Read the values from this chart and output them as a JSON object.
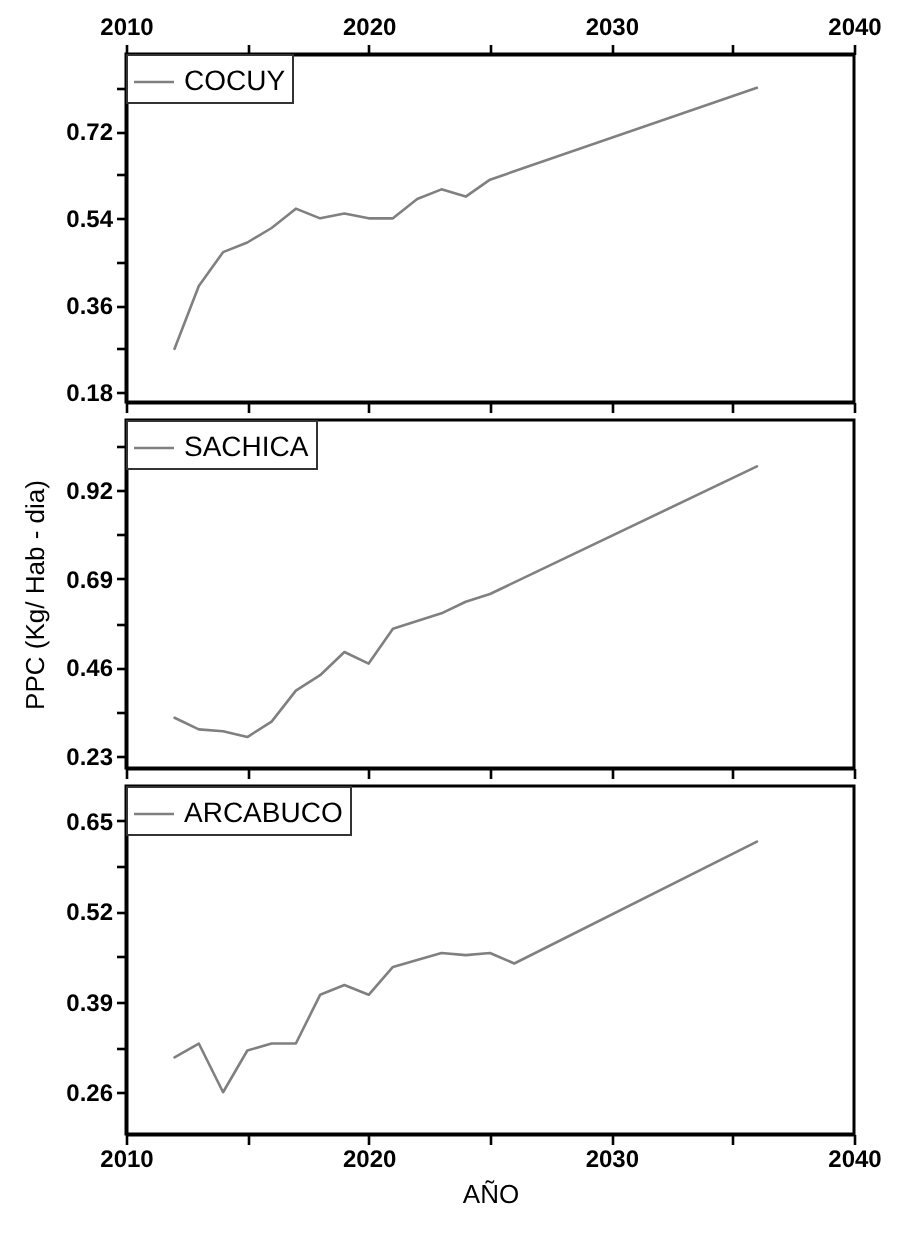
{
  "chart_data": [
    {
      "type": "line",
      "x": [
        2012,
        2013,
        2014,
        2015,
        2016,
        2017,
        2018,
        2019,
        2020,
        2021,
        2022,
        2023,
        2024,
        2025,
        2036
      ],
      "series": [
        {
          "name": "COCUY",
          "color": "#808080",
          "values": [
            0.27,
            0.4,
            0.47,
            0.49,
            0.52,
            0.56,
            0.54,
            0.55,
            0.54,
            0.54,
            0.58,
            0.6,
            0.585,
            0.62,
            0.81
          ]
        }
      ],
      "xlim": [
        2010,
        2040
      ],
      "xticks": [
        2010,
        {
          "value": 2015,
          "label": null
        },
        2020,
        {
          "value": 2025,
          "label": null
        },
        2030,
        {
          "value": 2035,
          "label": null
        },
        2040
      ],
      "x2lim": [
        2010,
        2040
      ],
      "x2ticks": [
        2010,
        {
          "value": 2015,
          "label": null
        },
        2020,
        {
          "value": 2025,
          "label": null
        },
        2030,
        {
          "value": 2035,
          "label": null
        },
        2040
      ],
      "tick_labels": "y",
      "ylim": [
        0.16,
        0.88
      ],
      "yticks": [
        0.18,
        {
          "value": 0.27,
          "label": null
        },
        0.36,
        {
          "value": 0.45,
          "label": null
        },
        0.54,
        {
          "value": 0.63,
          "label": null
        },
        0.72,
        {
          "value": 0.81,
          "label": null
        }
      ],
      "legend": "top left",
      "line_style": "solid"
    },
    {
      "type": "line",
      "x": [
        2012,
        2013,
        2014,
        2015,
        2016,
        2017,
        2018,
        2019,
        2020,
        2021,
        2022,
        2023,
        2024,
        2025,
        2036
      ],
      "series": [
        {
          "name": "SACHICA",
          "color": "#808080",
          "values": [
            0.33,
            0.3,
            0.295,
            0.28,
            0.32,
            0.4,
            0.44,
            0.5,
            0.47,
            0.56,
            0.58,
            0.6,
            0.63,
            0.65,
            0.98
          ]
        }
      ],
      "ylabel": "PPC (Kg/ Hab - dia)",
      "xlim": [
        2010,
        2040
      ],
      "xticks": [
        2010,
        {
          "value": 2015,
          "label": null
        },
        2020,
        {
          "value": 2025,
          "label": null
        },
        2030,
        {
          "value": 2035,
          "label": null
        },
        2040
      ],
      "ylim": [
        0.2,
        1.1
      ],
      "yticks": [
        0.23,
        {
          "value": 0.345,
          "label": null
        },
        0.46,
        {
          "value": 0.575,
          "label": null
        },
        0.69,
        {
          "value": 0.805,
          "label": null
        },
        0.92,
        {
          "value": 1.035,
          "label": null
        }
      ],
      "tick_labels": "y",
      "legend": "top left",
      "line_style": "solid"
    },
    {
      "type": "line",
      "x": [
        2012,
        2013,
        2014,
        2015,
        2016,
        2017,
        2018,
        2019,
        2020,
        2021,
        2022,
        2023,
        2024,
        2025,
        2026,
        2036
      ],
      "series": [
        {
          "name": "ARCABUCO",
          "color": "#808080",
          "values": [
            0.31,
            0.33,
            0.26,
            0.32,
            0.33,
            0.33,
            0.4,
            0.414,
            0.4,
            0.44,
            0.45,
            0.46,
            0.457,
            0.46,
            0.445,
            0.62
          ]
        }
      ],
      "xlabel": "AÑO",
      "xlim": [
        2010,
        2040
      ],
      "xticks": [
        2010,
        {
          "value": 2015,
          "label": null
        },
        2020,
        {
          "value": 2025,
          "label": null
        },
        2030,
        {
          "value": 2035,
          "label": null
        },
        2040
      ],
      "ylim": [
        0.2,
        0.7
      ],
      "yticks": [
        0.26,
        {
          "value": 0.325,
          "label": null
        },
        0.39,
        {
          "value": 0.455,
          "label": null
        },
        0.52,
        {
          "value": 0.585,
          "label": null
        },
        0.65
      ],
      "legend": "top left",
      "line_style": "solid"
    }
  ]
}
